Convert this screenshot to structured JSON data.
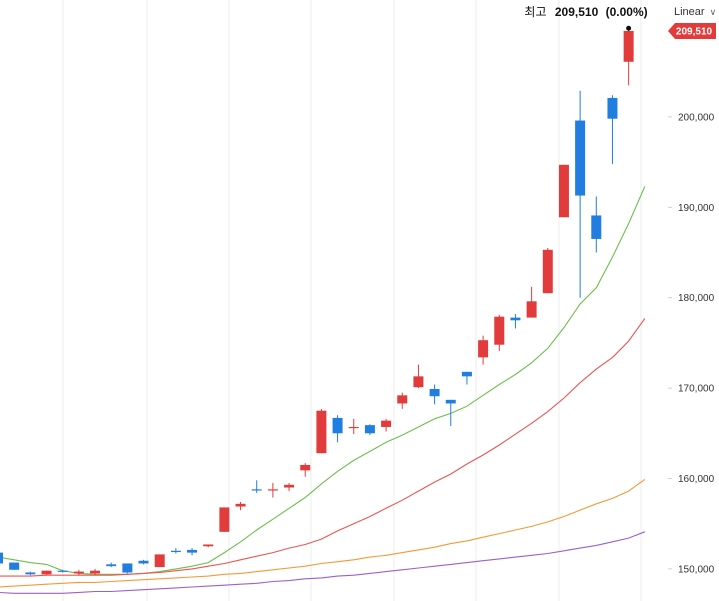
{
  "scale_selector": {
    "label": "Linear",
    "icon": "chevron-down-icon"
  },
  "high_marker": {
    "label": "최고",
    "value": "209,510",
    "change": "(0.00%)"
  },
  "price_tag": {
    "value": "209,510",
    "color": "#e23b3b"
  },
  "colors": {
    "up": "#e23b3b",
    "down": "#1f7ee0",
    "ma_short": "#6cc04a",
    "ma_mid": "#ef5350",
    "ma_long": "#f29a38",
    "ma_longer": "#9c5fd0",
    "grid": "#ececec"
  },
  "chart_data": {
    "type": "candlestick",
    "ylim": [
      147000,
      210500
    ],
    "y_ticks": [
      150000,
      160000,
      170000,
      180000,
      190000,
      200000
    ],
    "y_tick_labels": [
      "150,000",
      "160,000",
      "170,000",
      "180,000",
      "190,000",
      "200,000"
    ],
    "candles": [
      {
        "o": 151800,
        "h": 151800,
        "l": 150600,
        "c": 150600
      },
      {
        "o": 150700,
        "h": 150700,
        "l": 149900,
        "c": 149900
      },
      {
        "o": 149600,
        "h": 149700,
        "l": 149300,
        "c": 149400
      },
      {
        "o": 149400,
        "h": 149800,
        "l": 149300,
        "c": 149800
      },
      {
        "o": 149800,
        "h": 149900,
        "l": 149600,
        "c": 149700
      },
      {
        "o": 149500,
        "h": 149900,
        "l": 149300,
        "c": 149700
      },
      {
        "o": 149500,
        "h": 150000,
        "l": 149300,
        "c": 149800
      },
      {
        "o": 150500,
        "h": 150700,
        "l": 150200,
        "c": 150300
      },
      {
        "o": 150600,
        "h": 150600,
        "l": 149500,
        "c": 149600
      },
      {
        "o": 150900,
        "h": 151000,
        "l": 150500,
        "c": 150600
      },
      {
        "o": 150200,
        "h": 151600,
        "l": 150200,
        "c": 151600
      },
      {
        "o": 152000,
        "h": 152300,
        "l": 151700,
        "c": 151900
      },
      {
        "o": 152100,
        "h": 152300,
        "l": 151500,
        "c": 151800
      },
      {
        "o": 152500,
        "h": 152700,
        "l": 152400,
        "c": 152700
      },
      {
        "o": 154100,
        "h": 156800,
        "l": 154100,
        "c": 156800
      },
      {
        "o": 156900,
        "h": 157400,
        "l": 156500,
        "c": 157200
      },
      {
        "o": 158800,
        "h": 159800,
        "l": 158400,
        "c": 158700
      },
      {
        "o": 158800,
        "h": 159500,
        "l": 157900,
        "c": 158800
      },
      {
        "o": 159000,
        "h": 159500,
        "l": 158600,
        "c": 159300
      },
      {
        "o": 160900,
        "h": 161700,
        "l": 160200,
        "c": 161500
      },
      {
        "o": 162800,
        "h": 167700,
        "l": 162800,
        "c": 167500
      },
      {
        "o": 166700,
        "h": 167000,
        "l": 164000,
        "c": 165000
      },
      {
        "o": 165600,
        "h": 166600,
        "l": 164900,
        "c": 165700
      },
      {
        "o": 165900,
        "h": 166000,
        "l": 164800,
        "c": 165000
      },
      {
        "o": 165700,
        "h": 166600,
        "l": 165200,
        "c": 166400
      },
      {
        "o": 168300,
        "h": 169500,
        "l": 167700,
        "c": 169200
      },
      {
        "o": 170100,
        "h": 172600,
        "l": 170000,
        "c": 171300
      },
      {
        "o": 169900,
        "h": 170400,
        "l": 168200,
        "c": 169100
      },
      {
        "o": 168700,
        "h": 168700,
        "l": 165800,
        "c": 168300
      },
      {
        "o": 171800,
        "h": 171800,
        "l": 170400,
        "c": 171300
      },
      {
        "o": 173400,
        "h": 175800,
        "l": 172600,
        "c": 175300
      },
      {
        "o": 174800,
        "h": 178100,
        "l": 174100,
        "c": 177900
      },
      {
        "o": 177800,
        "h": 178200,
        "l": 176600,
        "c": 177500
      },
      {
        "o": 177800,
        "h": 181200,
        "l": 177800,
        "c": 179600
      },
      {
        "o": 180500,
        "h": 185500,
        "l": 180500,
        "c": 185300
      },
      {
        "o": 188900,
        "h": 194700,
        "l": 188900,
        "c": 194700
      },
      {
        "o": 199600,
        "h": 202900,
        "l": 180000,
        "c": 191300
      },
      {
        "o": 189100,
        "h": 191200,
        "l": 185000,
        "c": 186500
      },
      {
        "o": 202100,
        "h": 202400,
        "l": 194800,
        "c": 199800
      },
      {
        "o": 206100,
        "h": 209700,
        "l": 203500,
        "c": 209510
      }
    ],
    "ma_series": [
      {
        "color_key": "ma_short",
        "values": [
          151300,
          151000,
          150700,
          150500,
          149800,
          149500,
          149400,
          149400,
          149400,
          149500,
          149700,
          150000,
          150300,
          150700,
          151800,
          153000,
          154300,
          155500,
          156700,
          157900,
          159400,
          160800,
          162000,
          163000,
          164000,
          164800,
          165700,
          166600,
          167200,
          168000,
          169200,
          170400,
          171500,
          172800,
          174400,
          176700,
          179300,
          181100,
          184500,
          188200,
          192300
        ]
      },
      {
        "color_key": "ma_mid",
        "values": [
          149200,
          149200,
          149200,
          149300,
          149300,
          149300,
          149300,
          149300,
          149400,
          149500,
          149600,
          149800,
          150000,
          150300,
          150600,
          151000,
          151400,
          151800,
          152300,
          152700,
          153300,
          154200,
          155000,
          155800,
          156700,
          157600,
          158600,
          159600,
          160500,
          161600,
          162600,
          163700,
          164900,
          166100,
          167400,
          168900,
          170600,
          172100,
          173400,
          175200,
          177700
        ]
      },
      {
        "color_key": "ma_long",
        "values": [
          148000,
          148100,
          148200,
          148300,
          148400,
          148500,
          148500,
          148600,
          148700,
          148800,
          148900,
          149000,
          149100,
          149200,
          149400,
          149500,
          149700,
          149900,
          150100,
          150300,
          150600,
          150800,
          151000,
          151300,
          151500,
          151800,
          152100,
          152400,
          152800,
          153100,
          153500,
          153900,
          154300,
          154700,
          155200,
          155800,
          156500,
          157200,
          157800,
          158600,
          159900
        ]
      },
      {
        "color_key": "ma_longer",
        "values": [
          147400,
          147300,
          147300,
          147300,
          147300,
          147400,
          147500,
          147500,
          147600,
          147700,
          147800,
          147900,
          148000,
          148100,
          148200,
          148300,
          148400,
          148600,
          148700,
          148900,
          149000,
          149200,
          149300,
          149500,
          149700,
          149900,
          150100,
          150300,
          150500,
          150700,
          150900,
          151100,
          151300,
          151500,
          151700,
          152000,
          152300,
          152600,
          153000,
          153400,
          154100
        ]
      }
    ]
  }
}
